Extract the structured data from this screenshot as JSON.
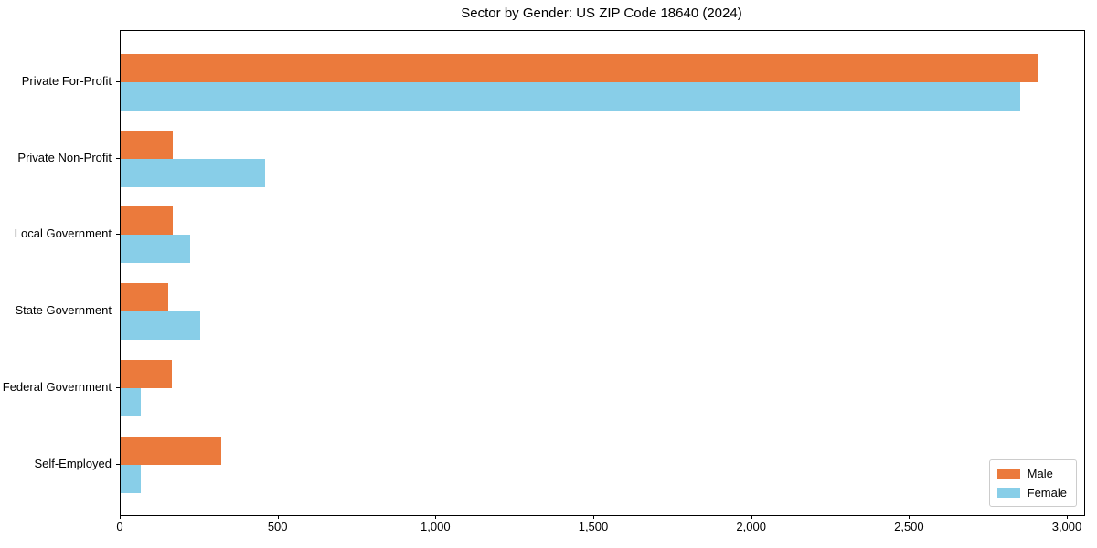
{
  "chart_data": {
    "type": "bar",
    "orientation": "horizontal",
    "title": "Sector by Gender: US ZIP Code 18640 (2024)",
    "categories": [
      "Private For-Profit",
      "Private Non-Profit",
      "Local Government",
      "State Government",
      "Federal Government",
      "Self-Employed"
    ],
    "series": [
      {
        "name": "Male",
        "color": "#eb7a3c",
        "values": [
          2907,
          165,
          165,
          150,
          161,
          318
        ]
      },
      {
        "name": "Female",
        "color": "#88cee8",
        "values": [
          2849,
          458,
          220,
          252,
          64,
          64
        ]
      }
    ],
    "xlabel": "",
    "ylabel": "",
    "xlim": [
      0,
      3052
    ],
    "xticks": [
      0,
      500,
      1000,
      1500,
      2000,
      2500,
      3000
    ],
    "xtick_labels": [
      "0",
      "500",
      "1,000",
      "1,500",
      "2,000",
      "2,500",
      "3,000"
    ],
    "legend_position": "lower right",
    "grid": false
  }
}
